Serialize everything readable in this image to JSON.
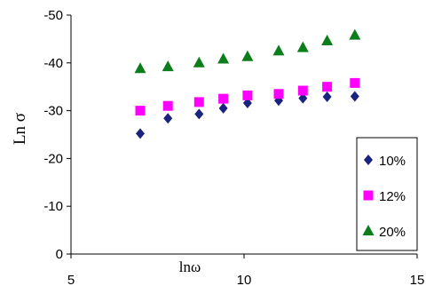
{
  "chart_data": {
    "type": "scatter",
    "title": "",
    "xlabel": "lnω",
    "ylabel": "Ln σ",
    "xlim": [
      5,
      15
    ],
    "ylim": [
      0,
      -50
    ],
    "x_ticks": [
      "5",
      "10",
      "15"
    ],
    "y_ticks": [
      "0",
      "-10",
      "-20",
      "-30",
      "-40",
      "-50"
    ],
    "grid": false,
    "legend_position": "bottom-right",
    "series": [
      {
        "name": "10%",
        "marker": "diamond",
        "color": "#1a237e",
        "x": [
          7.0,
          7.8,
          8.7,
          9.4,
          10.1,
          11.0,
          11.7,
          12.4,
          13.2
        ],
        "y": [
          -25.2,
          -28.4,
          -29.3,
          -30.5,
          -31.6,
          -32.1,
          -32.6,
          -32.9,
          -33.0
        ]
      },
      {
        "name": "12%",
        "marker": "square",
        "color": "#ff00ff",
        "x": [
          7.0,
          7.8,
          8.7,
          9.4,
          10.1,
          11.0,
          11.7,
          12.4,
          13.2
        ],
        "y": [
          -30.0,
          -31.0,
          -31.8,
          -32.5,
          -33.2,
          -33.5,
          -34.2,
          -35.0,
          -35.8
        ]
      },
      {
        "name": "20%",
        "marker": "triangle",
        "color": "#0b7d1a",
        "x": [
          7.0,
          7.8,
          8.7,
          9.4,
          10.1,
          11.0,
          11.7,
          12.4,
          13.2
        ],
        "y": [
          -38.8,
          -39.2,
          -40.0,
          -40.8,
          -41.3,
          -42.5,
          -43.2,
          -44.6,
          -45.8
        ]
      }
    ]
  }
}
